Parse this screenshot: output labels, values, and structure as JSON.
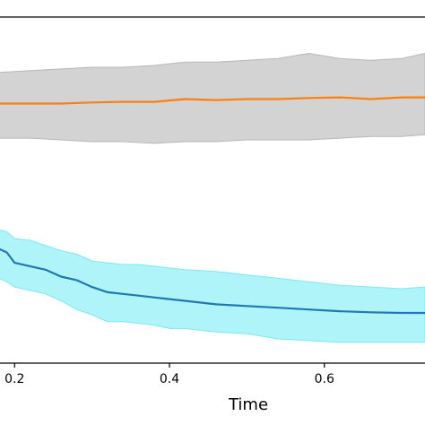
{
  "chart_data": {
    "type": "line",
    "title": "",
    "xlabel": "Time",
    "ylabel": "",
    "xlim": [
      0.18,
      0.73
    ],
    "ylim": [
      0.0,
      1.0
    ],
    "grid": false,
    "legend": "none",
    "x_ticks": [
      0.2,
      0.4,
      0.6
    ],
    "x_tick_labels": [
      "0.2",
      "0.4",
      "0.6"
    ],
    "series": [
      {
        "color": "#ff7f0e",
        "band_color": "#d3d3d3",
        "band_edge": "#b8b8b8",
        "x": [
          0.18,
          0.22,
          0.26,
          0.3,
          0.34,
          0.38,
          0.42,
          0.46,
          0.5,
          0.54,
          0.58,
          0.62,
          0.66,
          0.7,
          0.73
        ],
        "y": [
          0.75,
          0.75,
          0.75,
          0.753,
          0.755,
          0.755,
          0.763,
          0.76,
          0.763,
          0.763,
          0.766,
          0.768,
          0.763,
          0.768,
          0.768
        ],
        "lower": [
          0.65,
          0.65,
          0.645,
          0.64,
          0.64,
          0.635,
          0.64,
          0.64,
          0.645,
          0.645,
          0.645,
          0.65,
          0.655,
          0.655,
          0.66
        ],
        "upper": [
          0.84,
          0.845,
          0.85,
          0.855,
          0.855,
          0.86,
          0.87,
          0.87,
          0.875,
          0.88,
          0.895,
          0.88,
          0.875,
          0.88,
          0.895
        ]
      },
      {
        "color": "#1f77b4",
        "band_color": "#aef4f9",
        "band_edge": "#7de8f2",
        "x": [
          0.18,
          0.19,
          0.2,
          0.22,
          0.24,
          0.26,
          0.28,
          0.3,
          0.32,
          0.34,
          0.36,
          0.38,
          0.4,
          0.42,
          0.46,
          0.5,
          0.54,
          0.58,
          0.62,
          0.66,
          0.7,
          0.73
        ],
        "y": [
          0.33,
          0.32,
          0.29,
          0.28,
          0.27,
          0.25,
          0.24,
          0.22,
          0.205,
          0.2,
          0.195,
          0.19,
          0.185,
          0.18,
          0.17,
          0.165,
          0.16,
          0.155,
          0.15,
          0.147,
          0.145,
          0.145
        ],
        "lower": [
          0.245,
          0.235,
          0.22,
          0.21,
          0.2,
          0.18,
          0.155,
          0.14,
          0.12,
          0.12,
          0.115,
          0.11,
          0.1,
          0.1,
          0.09,
          0.085,
          0.07,
          0.065,
          0.06,
          0.06,
          0.06,
          0.06
        ],
        "upper": [
          0.385,
          0.38,
          0.36,
          0.355,
          0.34,
          0.325,
          0.315,
          0.295,
          0.29,
          0.285,
          0.285,
          0.28,
          0.275,
          0.27,
          0.265,
          0.255,
          0.245,
          0.235,
          0.225,
          0.22,
          0.215,
          0.22
        ]
      }
    ]
  }
}
